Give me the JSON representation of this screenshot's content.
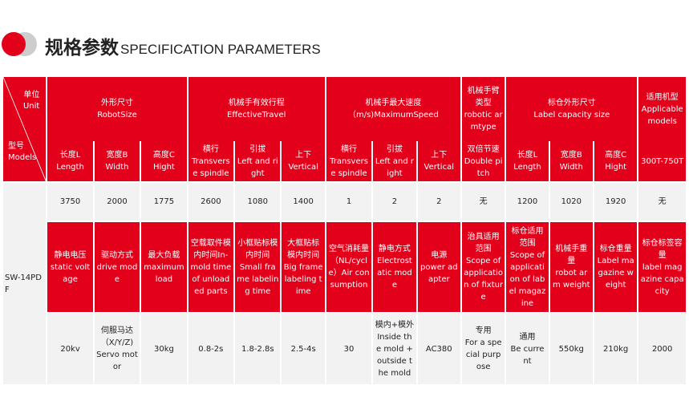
{
  "header": {
    "title_cn": "规格参数",
    "title_en": "SPECIFICATION PARAMETERS"
  },
  "corner": {
    "unit": "单位\nUnit",
    "model": "型号\nModels"
  },
  "groups": {
    "size": "外形尺寸\nRobotSize",
    "travel": "机械手有效行程\nEffectiveTravel",
    "speed": "机械手最大速度\n（m/s)MaximumSpeed",
    "armtype": "机械手臂类型\nrobotic armtype",
    "label_size": "标仓外形尺寸\nLabel capacity size",
    "models": "适用机型\nApplicable models"
  },
  "sub": {
    "length": "长度L\nLength",
    "width": "宽度B\nWidth",
    "height": "高度C\nHight",
    "trav_transverse": "横行\nTransverse spindle",
    "trav_left": "引拔\nLeft and right",
    "trav_vertical": "上下\nVertical",
    "spd_transverse": "横行\nTransverse spindle",
    "spd_left": "引拔\nLeft and right",
    "spd_vertical": "上下\nVertical",
    "double": "双倍节速\nDouble pitch",
    "lab_length": "长度L\nLength",
    "lab_width": "宽度B\nWidth",
    "lab_height": "高度C\nHight",
    "tonnage": "300T-750T"
  },
  "model_name": "SW-14PDF",
  "row1": [
    "3750",
    "2000",
    "1775",
    "2600",
    "1080",
    "1400",
    "1",
    "2",
    "2",
    "无",
    "1200",
    "1020",
    "1920",
    "无"
  ],
  "headers2": [
    "静电电压\nstatic voltage",
    "驱动方式\ndrive mode",
    "最大负载\nmaximum load",
    "空载取件模内时间In-mold time of unloaded parts",
    "小框贴标模内时间\nSmall frame labeling time",
    "大框贴标模内时间\nBig frame labeling time",
    "空气消耗量（NL/cycle）Air consumption",
    "静电方式\nElectrostatic mode",
    "电源\npower adapter",
    "治具适用范围\nScope of application of fixture",
    "标仓适用范围\nScope of application of label magazine",
    "机械手重量\nrobot arm weight",
    "标仓重量\nLabel magazine weight",
    "标仓标签容量\nlabel magazine capacity"
  ],
  "row2": [
    "20kv",
    "伺服马达\n（X/Y/Z)\nServo motor",
    "30kg",
    "0.8-2s",
    "1.8-2.8s",
    "2.5-4s",
    "30",
    "模内+模外\nInside the mold + outside the mold",
    "AC380",
    "专用\nFor a special purpose",
    "通用\nBe current",
    "550kg",
    "210kg",
    "2000"
  ]
}
